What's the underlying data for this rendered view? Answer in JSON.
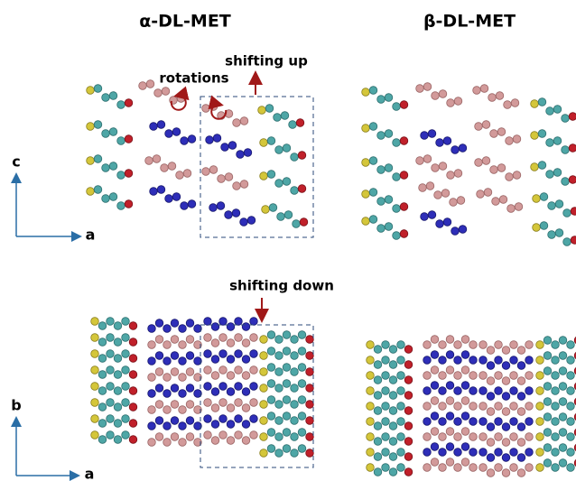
{
  "titles": {
    "alpha": "α-DL-MET",
    "beta": "β-DL-MET"
  },
  "annotations": {
    "shifting_up": "shifting up",
    "rotations": "rotations",
    "shifting_down": "shifting down"
  },
  "axes": {
    "top": {
      "vertical": "c",
      "horizontal": "a"
    },
    "bottom": {
      "vertical": "b",
      "horizontal": "a"
    }
  }
}
